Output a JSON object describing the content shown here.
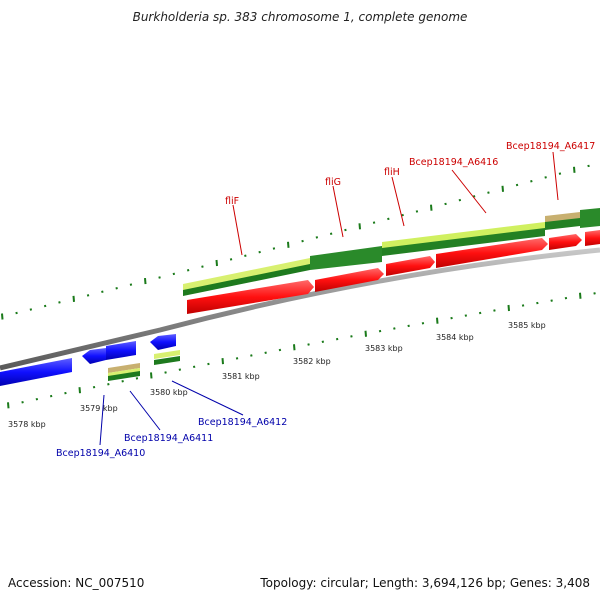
{
  "header": {
    "title": "Burkholderia sp. 383 chromosome 1, complete genome"
  },
  "footer": {
    "accession": "Accession: NC_007510",
    "summary": "Topology: circular; Length: 3,694,126 bp; Genes: 3,408"
  },
  "map": {
    "kbp_labels": [
      "3578 kbp",
      "3579 kbp",
      "3580 kbp",
      "3581 kbp",
      "3582 kbp",
      "3583 kbp",
      "3584 kbp",
      "3585 kbp"
    ],
    "genes_red": [
      "fliF",
      "fliG",
      "fliH",
      "Bcep18194_A6416",
      "Bcep18194_A6417"
    ],
    "genes_blue": [
      "Bcep18194_A6410",
      "Bcep18194_A6411",
      "Bcep18194_A6412"
    ],
    "colors": {
      "forward_strand": "#ff1a1a",
      "reverse_strand": "#1a1aff",
      "backbone": "#888888",
      "tick": "#1a7a1a",
      "label_red": "#cc0000",
      "label_blue": "#0000aa"
    }
  }
}
